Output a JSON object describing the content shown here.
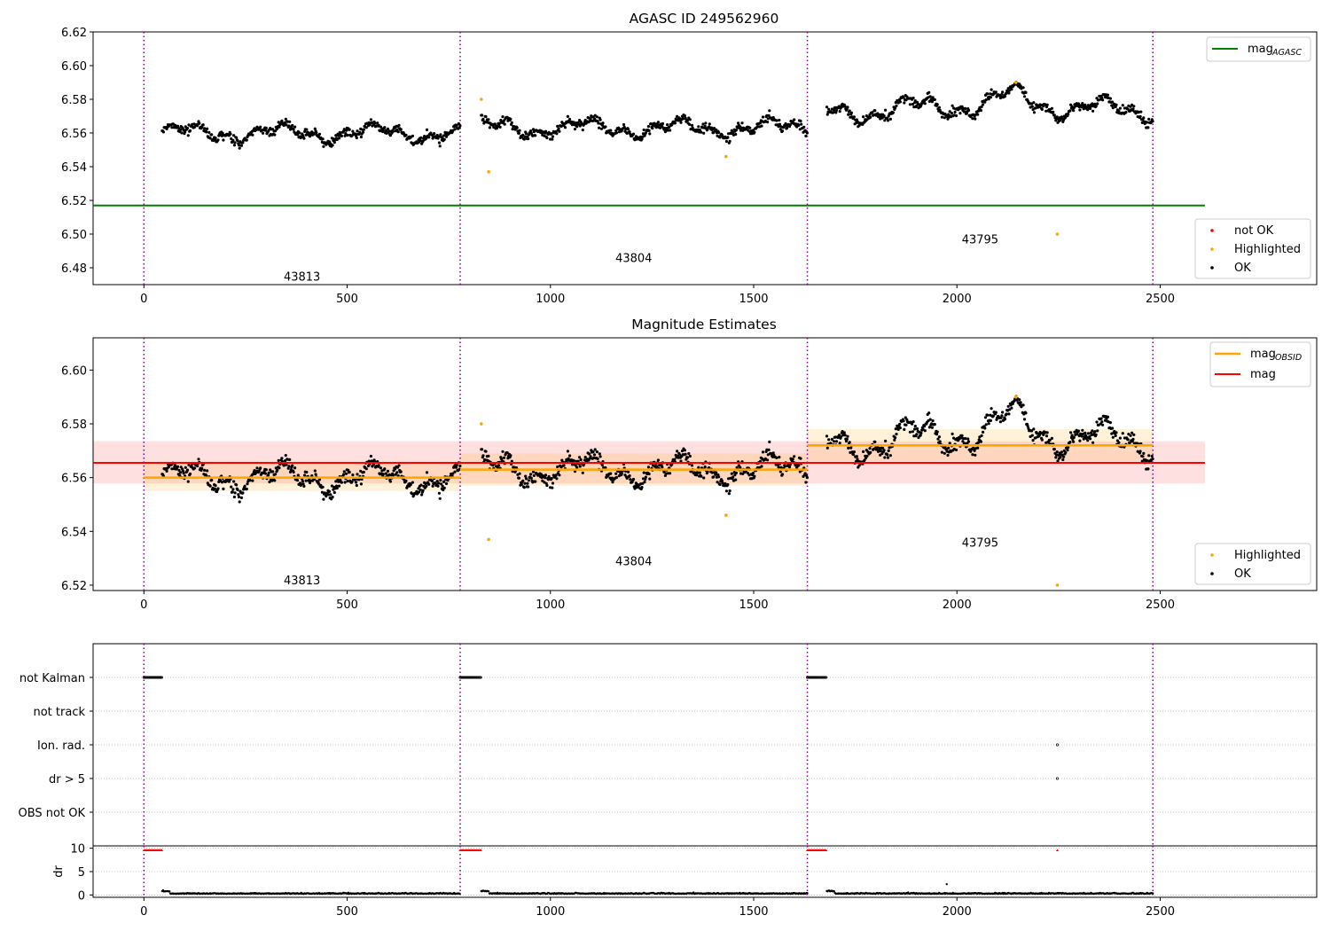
{
  "chart_data": [
    {
      "type": "scatter",
      "title": "AGASC ID 249562960",
      "xlim": [
        -125,
        2885
      ],
      "ylim": [
        6.47,
        6.62
      ],
      "xticks": [
        "0",
        "500",
        "1000",
        "1500",
        "2000",
        "2500"
      ],
      "yticks": [
        "6.48",
        "6.50",
        "6.52",
        "6.54",
        "6.56",
        "6.58",
        "6.60",
        "6.62"
      ],
      "obsid_boundaries": [
        0,
        778,
        1632,
        2482
      ],
      "obsid_labels": [
        {
          "text": "43813",
          "x": 389,
          "y": 6.475
        },
        {
          "text": "43804",
          "x": 1205,
          "y": 6.486
        },
        {
          "text": "43795",
          "x": 2057,
          "y": 6.497
        }
      ],
      "mag_agasc": 6.517,
      "legends": [
        {
          "position": "upper right",
          "entries": [
            "mag",
            "AGASC"
          ]
        },
        {
          "position": "lower right",
          "entries": [
            "not OK",
            "Highlighted",
            "OK"
          ]
        }
      ],
      "segments": [
        {
          "x_start": 45,
          "x_end": 778,
          "mean": 6.56,
          "amp": 0.005,
          "noise": 0.006
        },
        {
          "x_start": 830,
          "x_end": 1632,
          "mean": 6.563,
          "amp": 0.005,
          "noise": 0.006
        },
        {
          "x_start": 1680,
          "x_end": 2482,
          "mean": 6.572,
          "amp": 0.006,
          "noise": 0.006
        }
      ],
      "highlighted_points": [
        {
          "x": 830,
          "y": 6.58
        },
        {
          "x": 848,
          "y": 6.537
        },
        {
          "x": 1432,
          "y": 6.546
        },
        {
          "x": 2145,
          "y": 6.59
        },
        {
          "x": 2247,
          "y": 6.5
        }
      ]
    },
    {
      "type": "scatter",
      "title": "Magnitude Estimates",
      "xlim": [
        -125,
        2885
      ],
      "ylim": [
        6.518,
        6.612
      ],
      "xticks": [
        "0",
        "500",
        "1000",
        "1500",
        "2000",
        "2500"
      ],
      "yticks": [
        "6.52",
        "6.54",
        "6.56",
        "6.58",
        "6.60"
      ],
      "obsid_boundaries": [
        0,
        778,
        1632,
        2482
      ],
      "obsid_labels": [
        {
          "text": "43813",
          "x": 389,
          "y": 6.522
        },
        {
          "text": "43804",
          "x": 1205,
          "y": 6.529
        },
        {
          "text": "43795",
          "x": 2057,
          "y": 6.536
        }
      ],
      "mag": 6.5655,
      "mag_band": [
        6.5578,
        6.5735
      ],
      "mag_obsid": [
        {
          "x_start": 0,
          "x_end": 778,
          "value": 6.56,
          "band": [
            6.555,
            6.566
          ]
        },
        {
          "x_start": 778,
          "x_end": 1632,
          "value": 6.563,
          "band": [
            6.557,
            6.569
          ]
        },
        {
          "x_start": 1632,
          "x_end": 2482,
          "value": 6.572,
          "band": [
            6.566,
            6.578
          ]
        }
      ],
      "legends": [
        {
          "position": "upper right",
          "entries": [
            "mag",
            "OBSID",
            "mag"
          ]
        },
        {
          "position": "lower right",
          "entries": [
            "Highlighted",
            "OK"
          ]
        }
      ],
      "highlighted_points": [
        {
          "x": 830,
          "y": 6.58
        },
        {
          "x": 848,
          "y": 6.537
        },
        {
          "x": 1432,
          "y": 6.546
        },
        {
          "x": 2145,
          "y": 6.59
        },
        {
          "x": 2247,
          "y": 6.52
        }
      ]
    },
    {
      "type": "scatter",
      "xlim": [
        -125,
        2885
      ],
      "categories": [
        "not Kalman",
        "not track",
        "Ion. rad.",
        "dr > 5",
        "OBS not OK"
      ],
      "flags": [
        {
          "category": "not Kalman",
          "ranges": [
            [
              0,
              45
            ],
            [
              778,
              830
            ],
            [
              1632,
              1680
            ]
          ],
          "points": []
        },
        {
          "category": "Ion. rad.",
          "ranges": [],
          "points": [
            2247
          ]
        },
        {
          "category": "dr > 5",
          "ranges": [],
          "points": [
            2247
          ]
        }
      ]
    },
    {
      "type": "scatter",
      "ylabel": "dr",
      "xlim": [
        -125,
        2885
      ],
      "ylim": [
        -0.5,
        10.5
      ],
      "xticks": [
        "0",
        "500",
        "1000",
        "1500",
        "2000",
        "2500"
      ],
      "yticks": [
        "0",
        "5",
        "10"
      ],
      "high_dr_ranges": [
        [
          0,
          45
        ],
        [
          778,
          830
        ],
        [
          1632,
          1680
        ]
      ],
      "high_dr_points": [
        2247
      ],
      "outlier_points": [
        {
          "x": 1975,
          "y": 2.3
        }
      ]
    }
  ],
  "colors": {
    "ok": "#000000",
    "highlighted": "#ffa500",
    "not_ok": "#ff0000",
    "mag_agasc": "#008000",
    "mag": "#ff0000",
    "mag_obsid": "#ffa500",
    "boundary": "#800080"
  }
}
